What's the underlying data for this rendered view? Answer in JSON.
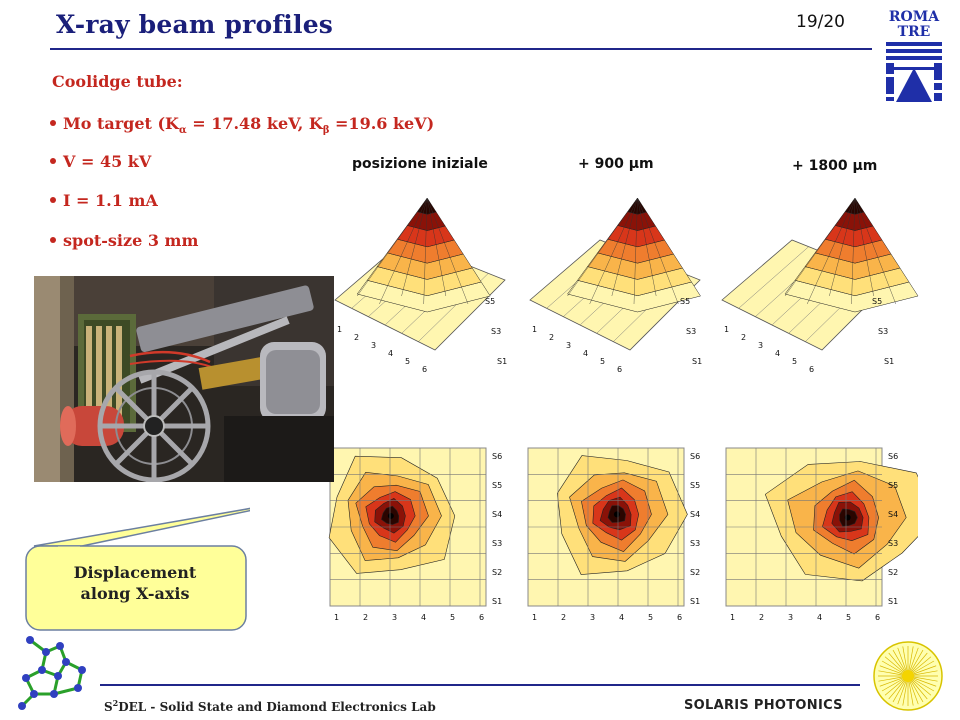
{
  "header": {
    "title": "X-ray beam profiles",
    "page": "19/20",
    "logo_line1": "ROMA",
    "logo_line2": "TRE"
  },
  "content": {
    "subhead": "Coolidge tube:",
    "bullets": [
      {
        "pre": "Mo target (K",
        "sub1": "α",
        "mid": " = 17.48 keV, K",
        "sub2": "β",
        "post": " =19.6 keV)"
      },
      {
        "text": "V = 45 kV"
      },
      {
        "text": "I = 1.1 mA"
      },
      {
        "text": "spot-size 3 mm"
      }
    ]
  },
  "plots": {
    "labels": [
      "posizione iniziale",
      "+ 900 µm",
      "+ 1800 µm"
    ],
    "x_ticks": [
      "1",
      "2",
      "3",
      "4",
      "5",
      "6"
    ],
    "y_ticks": [
      "S1",
      "S2",
      "S3",
      "S4",
      "S5",
      "S6"
    ],
    "surface_y_ticks": [
      "S1",
      "S3",
      "S5"
    ],
    "colors": {
      "level1": "#fff6b0",
      "level2": "#ffe07a",
      "level3": "#f9b44a",
      "level4": "#ef7d2e",
      "level5": "#d8361a",
      "level6": "#8a1208",
      "level7": "#2a0500"
    }
  },
  "callout": {
    "line1": "Displacement",
    "line2": "along X-axis"
  },
  "footer": {
    "left_prefix": "S",
    "left_sup": "2",
    "left_rest": "DEL - Solid State and Diamond Electronics Lab",
    "right": "SOLARIS PHOTONICS"
  }
}
